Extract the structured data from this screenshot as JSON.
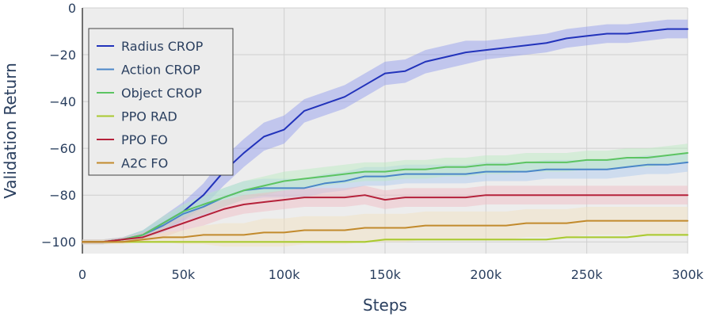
{
  "chart_data": {
    "type": "line",
    "title": "",
    "xlabel": "Steps",
    "ylabel": "Validation Return",
    "xlim": [
      0,
      300000
    ],
    "ylim": [
      -105,
      0
    ],
    "grid": true,
    "legend_position": "top-left",
    "x_ticks": [
      {
        "value": 0,
        "label": "0"
      },
      {
        "value": 50000,
        "label": "50k"
      },
      {
        "value": 100000,
        "label": "100k"
      },
      {
        "value": 150000,
        "label": "150k"
      },
      {
        "value": 200000,
        "label": "200k"
      },
      {
        "value": 250000,
        "label": "250k"
      },
      {
        "value": 300000,
        "label": "300k"
      }
    ],
    "y_ticks": [
      {
        "value": 0,
        "label": "0"
      },
      {
        "value": -20,
        "label": "−20"
      },
      {
        "value": -40,
        "label": "−40"
      },
      {
        "value": -60,
        "label": "−60"
      },
      {
        "value": -80,
        "label": "−80"
      },
      {
        "value": -100,
        "label": "−100"
      }
    ],
    "x": [
      0,
      10000,
      20000,
      30000,
      40000,
      50000,
      60000,
      70000,
      80000,
      90000,
      100000,
      110000,
      120000,
      130000,
      140000,
      150000,
      160000,
      170000,
      180000,
      190000,
      200000,
      210000,
      220000,
      230000,
      240000,
      250000,
      260000,
      270000,
      280000,
      290000,
      300000
    ],
    "series": [
      {
        "name": "Radius CROP",
        "color": "#2233bb",
        "band_color": "#8c96ee",
        "values": [
          -100,
          -100,
          -99,
          -97,
          -92,
          -87,
          -80,
          -70,
          -62,
          -55,
          -52,
          -44,
          -41,
          -38,
          -33,
          -28,
          -27,
          -23,
          -21,
          -19,
          -18,
          -17,
          -16,
          -15,
          -13,
          -12,
          -11,
          -11,
          -10,
          -9,
          -9
        ],
        "band": [
          1,
          1,
          1,
          2,
          3,
          4,
          5,
          6,
          6,
          6,
          6,
          5,
          5,
          5,
          5,
          5,
          5,
          5,
          5,
          5,
          4,
          4,
          4,
          4,
          4,
          4,
          4,
          4,
          4,
          4,
          4
        ]
      },
      {
        "name": "Action CROP",
        "color": "#4a86c8",
        "band_color": "#a8c8ef",
        "values": [
          -100,
          -100,
          -99,
          -97,
          -93,
          -88,
          -85,
          -81,
          -78,
          -77,
          -77,
          -77,
          -75,
          -74,
          -72,
          -72,
          -71,
          -71,
          -71,
          -71,
          -70,
          -70,
          -70,
          -69,
          -69,
          -69,
          -69,
          -68,
          -67,
          -67,
          -66
        ],
        "band": [
          1,
          1,
          1,
          2,
          3,
          3,
          4,
          4,
          4,
          4,
          4,
          4,
          4,
          4,
          4,
          4,
          4,
          4,
          4,
          4,
          4,
          4,
          4,
          4,
          4,
          4,
          4,
          4,
          4,
          4,
          4
        ]
      },
      {
        "name": "Object CROP",
        "color": "#5cc462",
        "band_color": "#b8ecbe",
        "values": [
          -100,
          -100,
          -99,
          -97,
          -92,
          -87,
          -84,
          -81,
          -78,
          -76,
          -74,
          -73,
          -72,
          -71,
          -70,
          -70,
          -69,
          -69,
          -68,
          -68,
          -67,
          -67,
          -66,
          -66,
          -66,
          -65,
          -65,
          -64,
          -64,
          -63,
          -62
        ],
        "band": [
          1,
          1,
          1,
          2,
          3,
          3,
          4,
          4,
          4,
          4,
          4,
          4,
          4,
          4,
          4,
          4,
          4,
          4,
          4,
          4,
          4,
          4,
          4,
          4,
          4,
          4,
          4,
          4,
          4,
          4,
          4
        ]
      },
      {
        "name": "PPO RAD",
        "color": "#a9c92f",
        "band_color": "#e2eeb0",
        "values": [
          -100,
          -100,
          -100,
          -100,
          -100,
          -100,
          -100,
          -100,
          -100,
          -100,
          -100,
          -100,
          -100,
          -100,
          -100,
          -99,
          -99,
          -99,
          -99,
          -99,
          -99,
          -99,
          -99,
          -99,
          -98,
          -98,
          -98,
          -98,
          -97,
          -97,
          -97
        ],
        "band": [
          0.5,
          0.5,
          0.5,
          0.5,
          0.5,
          0.5,
          0.5,
          0.5,
          0.5,
          0.5,
          0.5,
          0.5,
          0.5,
          0.5,
          0.5,
          0.5,
          0.5,
          0.5,
          0.5,
          0.5,
          0.5,
          0.5,
          0.5,
          0.5,
          0.5,
          0.5,
          0.5,
          0.5,
          0.5,
          0.5,
          0.5
        ]
      },
      {
        "name": "PPO FO",
        "color": "#b5213a",
        "band_color": "#f0b8c0",
        "values": [
          -100,
          -100,
          -99,
          -98,
          -95,
          -92,
          -89,
          -86,
          -84,
          -83,
          -82,
          -81,
          -81,
          -81,
          -80,
          -82,
          -81,
          -81,
          -81,
          -81,
          -80,
          -80,
          -80,
          -80,
          -80,
          -80,
          -80,
          -80,
          -80,
          -80,
          -80
        ],
        "band": [
          1,
          1,
          1,
          2,
          3,
          3,
          4,
          4,
          4,
          4,
          4,
          4,
          4,
          4,
          4,
          4,
          4,
          4,
          4,
          4,
          4,
          4,
          4,
          4,
          4,
          4,
          4,
          4,
          4,
          4,
          4
        ]
      },
      {
        "name": "A2C FO",
        "color": "#c28a2c",
        "band_color": "#f2e0bc",
        "values": [
          -100,
          -100,
          -100,
          -99,
          -98,
          -98,
          -97,
          -97,
          -97,
          -96,
          -96,
          -95,
          -95,
          -95,
          -94,
          -94,
          -94,
          -93,
          -93,
          -93,
          -93,
          -93,
          -92,
          -92,
          -92,
          -91,
          -91,
          -91,
          -91,
          -91,
          -91
        ],
        "band": [
          1,
          1,
          1,
          1,
          2,
          3,
          4,
          5,
          5,
          6,
          6,
          6,
          6,
          6,
          6,
          6,
          6,
          6,
          6,
          6,
          6,
          6,
          6,
          6,
          6,
          6,
          6,
          6,
          6,
          6,
          6
        ]
      }
    ]
  }
}
